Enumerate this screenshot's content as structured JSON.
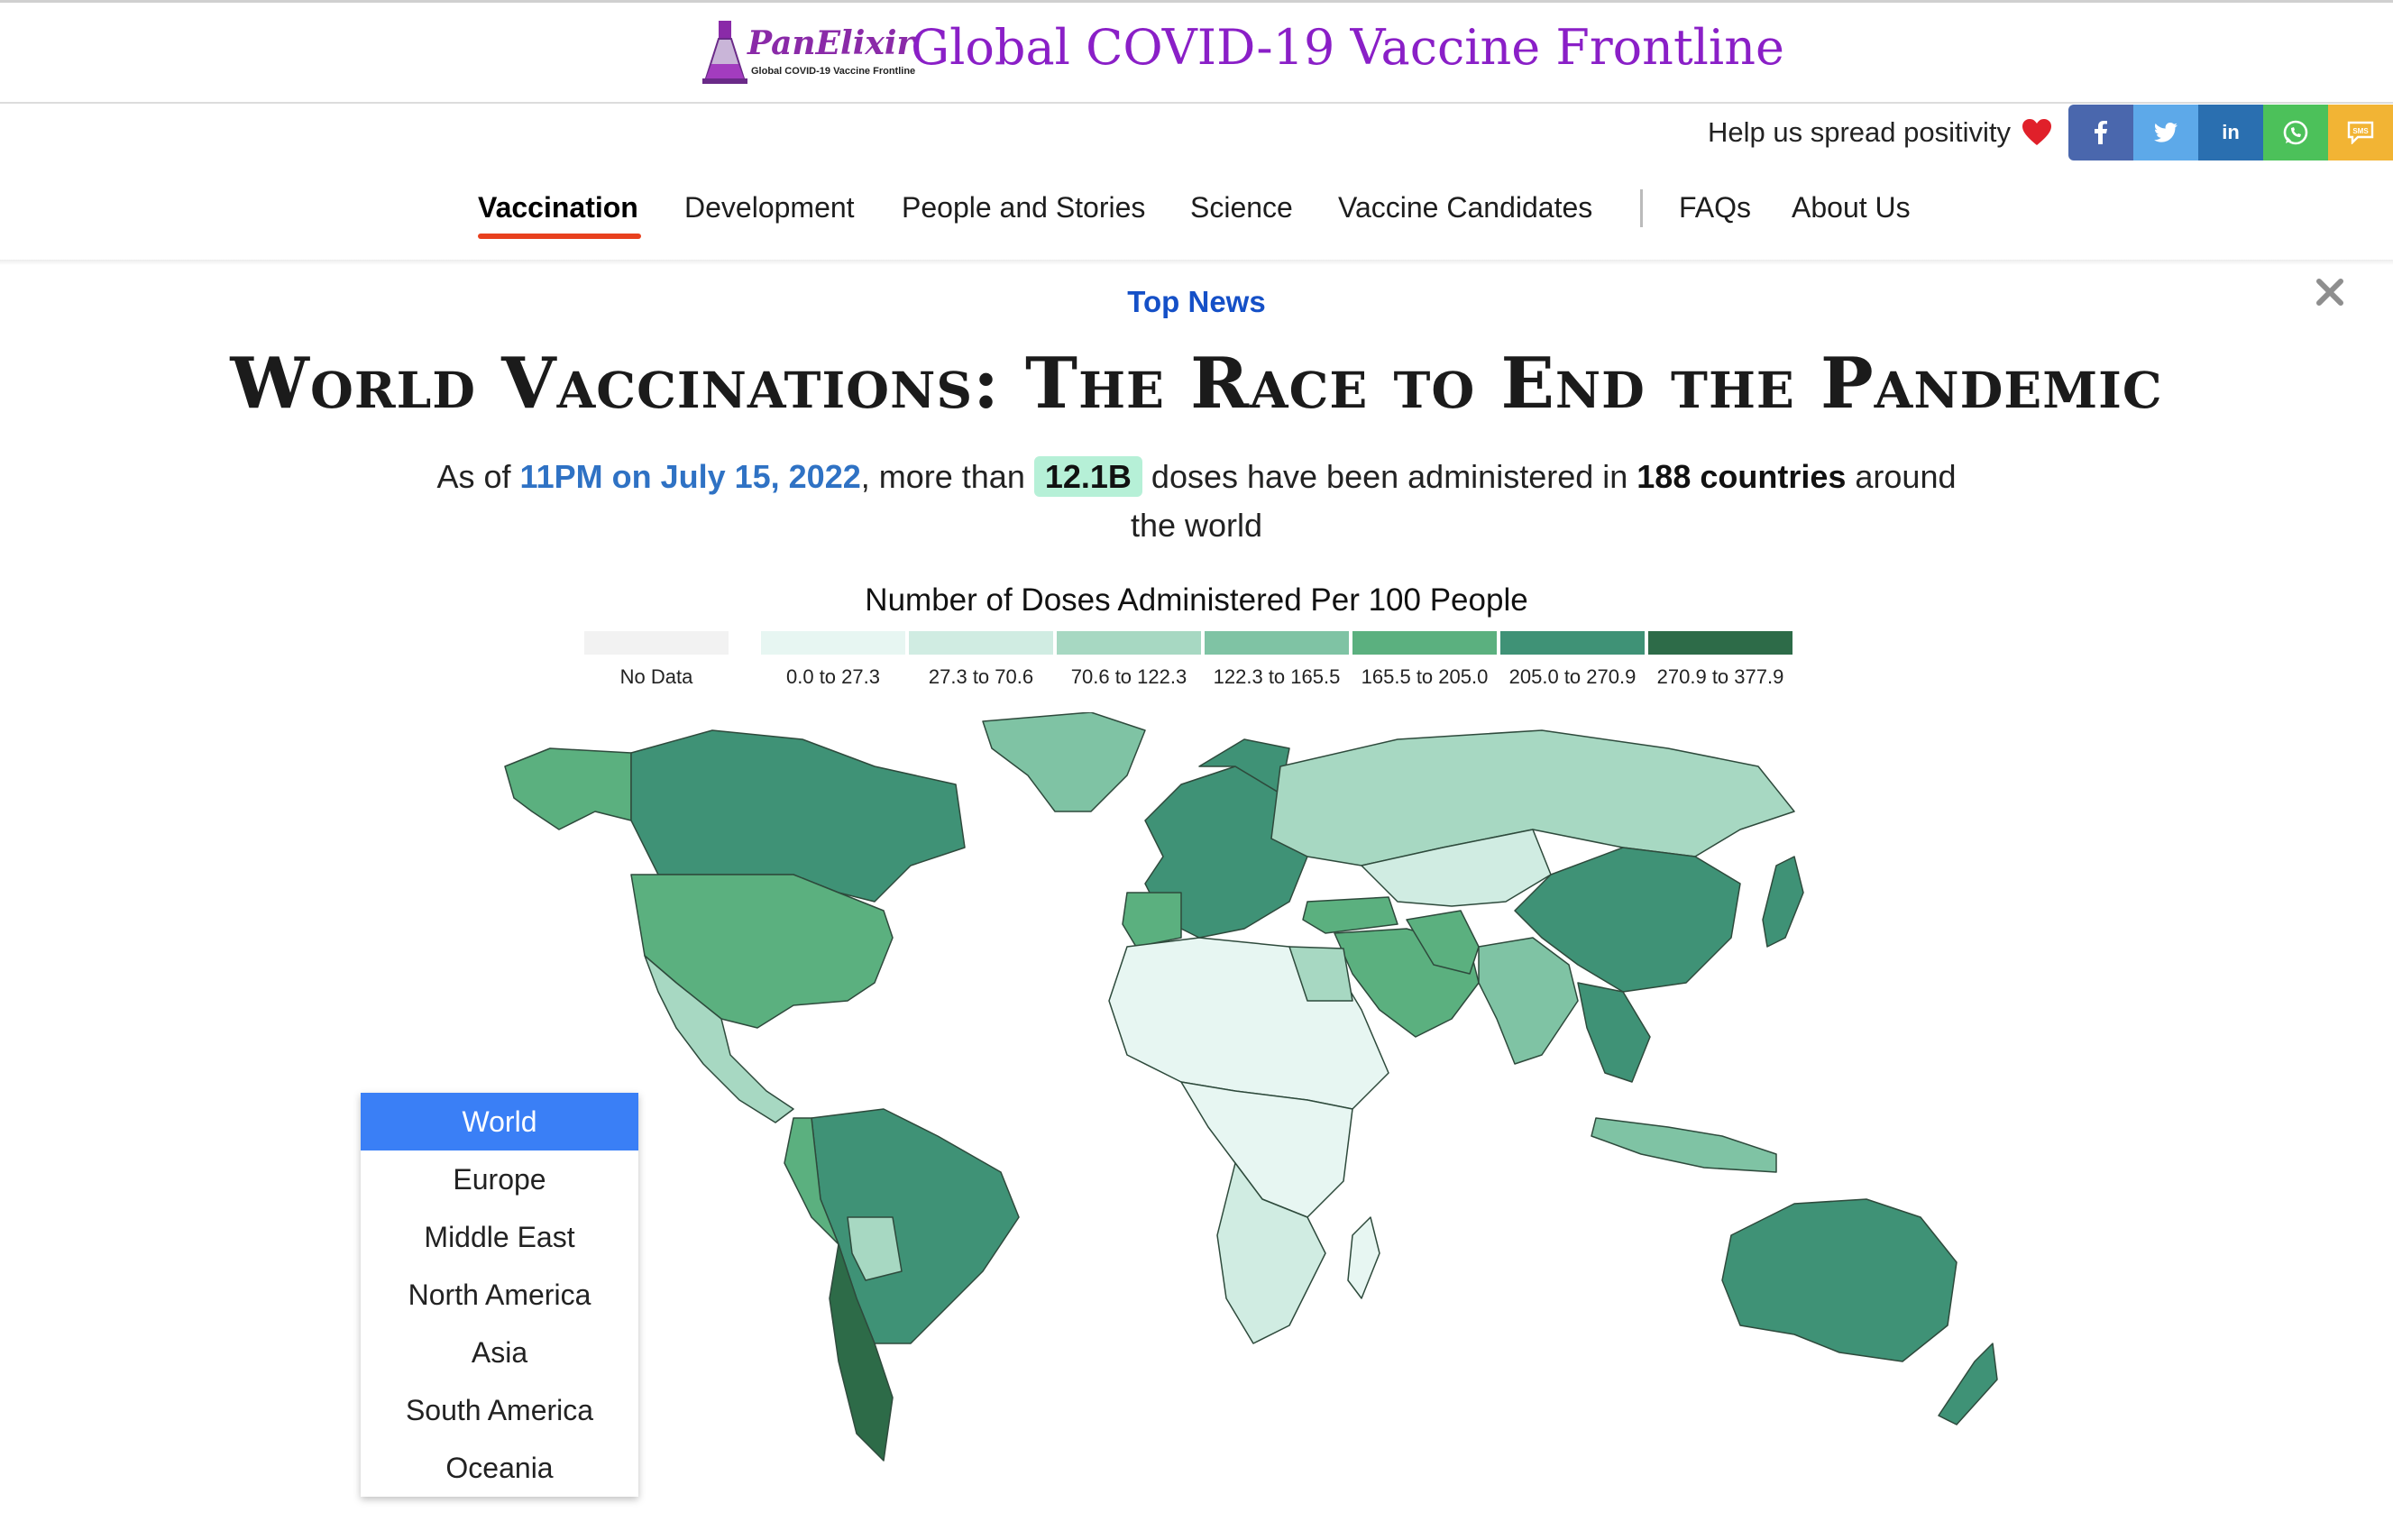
{
  "header": {
    "logo_name": "PanElixir",
    "logo_subtitle": "Global COVID-19 Vaccine Frontline",
    "site_title": "Global COVID-19 Vaccine Frontline"
  },
  "share": {
    "text": "Help us spread positivity",
    "heart_icon": "heart-icon",
    "buttons": [
      {
        "label": "f",
        "icon": "facebook-icon",
        "color": "#4a67ad"
      },
      {
        "label": "t",
        "icon": "twitter-icon",
        "color": "#5da9e9"
      },
      {
        "label": "in",
        "icon": "linkedin-icon",
        "color": "#2a6fb0"
      },
      {
        "label": "wa",
        "icon": "whatsapp-icon",
        "color": "#4cc15a"
      },
      {
        "label": "SMS",
        "icon": "sms-icon",
        "color": "#f2b434"
      }
    ]
  },
  "nav": {
    "items": [
      {
        "label": "Vaccination",
        "active": true
      },
      {
        "label": "Development"
      },
      {
        "label": "People and Stories"
      },
      {
        "label": "Science"
      },
      {
        "label": "Vaccine Candidates"
      },
      {
        "label": "FAQs"
      },
      {
        "label": "About Us"
      }
    ],
    "accent": "#e8401e"
  },
  "content": {
    "top_news": "Top News",
    "title": "World Vaccinations: The Race to End the Pandemic",
    "summary": {
      "prefix": "As of ",
      "date": "11PM on July 15, 2022",
      "mid1": ", more than ",
      "doses": "12.1B",
      "mid2": " doses have been administered in ",
      "countries": "188 countries",
      "suffix": " around the world"
    }
  },
  "legend": {
    "title": "Number of Doses Administered Per 100 People",
    "items": [
      {
        "label": "No Data",
        "color": "#f2f2f2"
      },
      {
        "label": "0.0 to 27.3",
        "color": "#e7f6f2"
      },
      {
        "label": "27.3 to 70.6",
        "color": "#d0ece2"
      },
      {
        "label": "70.6 to 122.3",
        "color": "#a7d8c2"
      },
      {
        "label": "122.3 to 165.5",
        "color": "#7fc3a4"
      },
      {
        "label": "165.5 to 205.0",
        "color": "#5bb07f"
      },
      {
        "label": "205.0 to 270.9",
        "color": "#3f9276"
      },
      {
        "label": "270.9 to 377.9",
        "color": "#2d6b48"
      }
    ]
  },
  "region_menu": {
    "items": [
      "World",
      "Europe",
      "Middle East",
      "North America",
      "Asia",
      "South America",
      "Oceania"
    ],
    "selected": "World",
    "selected_color": "#3a7ff6"
  }
}
